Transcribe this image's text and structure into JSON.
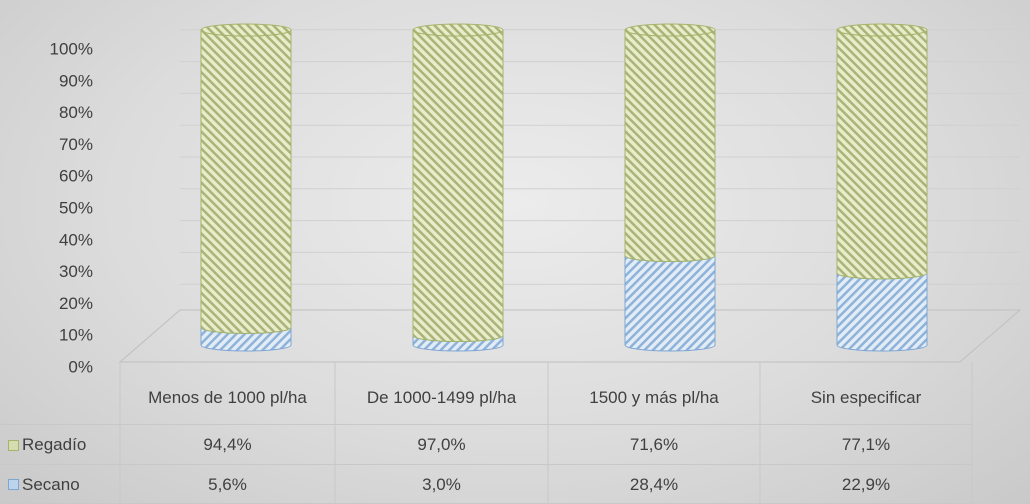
{
  "chart_data": {
    "type": "bar",
    "categories": [
      "Menos de 1000 pl/ha",
      "De 1000-1499 pl/ha",
      "1500 y más pl/ha",
      "Sin especificar"
    ],
    "series": [
      {
        "name": "Regadío",
        "color": "#d6dcb0",
        "values": [
          94.4,
          97.0,
          71.6,
          77.1
        ],
        "value_labels": [
          "94,4%",
          "97,0%",
          "71,6%",
          "77,1%"
        ]
      },
      {
        "name": "Secano",
        "color": "#bcd3ec",
        "values": [
          5.6,
          3.0,
          28.4,
          22.9
        ],
        "value_labels": [
          "5,6%",
          "3,0%",
          "28,4%",
          "22,9%"
        ]
      }
    ],
    "ylim": [
      0,
      100
    ],
    "yticks": [
      {
        "value": 0,
        "label": "0%"
      },
      {
        "value": 10,
        "label": "10%"
      },
      {
        "value": 20,
        "label": "20%"
      },
      {
        "value": 30,
        "label": "30%"
      },
      {
        "value": 40,
        "label": "40%"
      },
      {
        "value": 50,
        "label": "50%"
      },
      {
        "value": 60,
        "label": "60%"
      },
      {
        "value": 70,
        "label": "70%"
      },
      {
        "value": 80,
        "label": "80%"
      },
      {
        "value": 90,
        "label": "90%"
      },
      {
        "value": 100,
        "label": "100%"
      }
    ],
    "grid": true
  }
}
